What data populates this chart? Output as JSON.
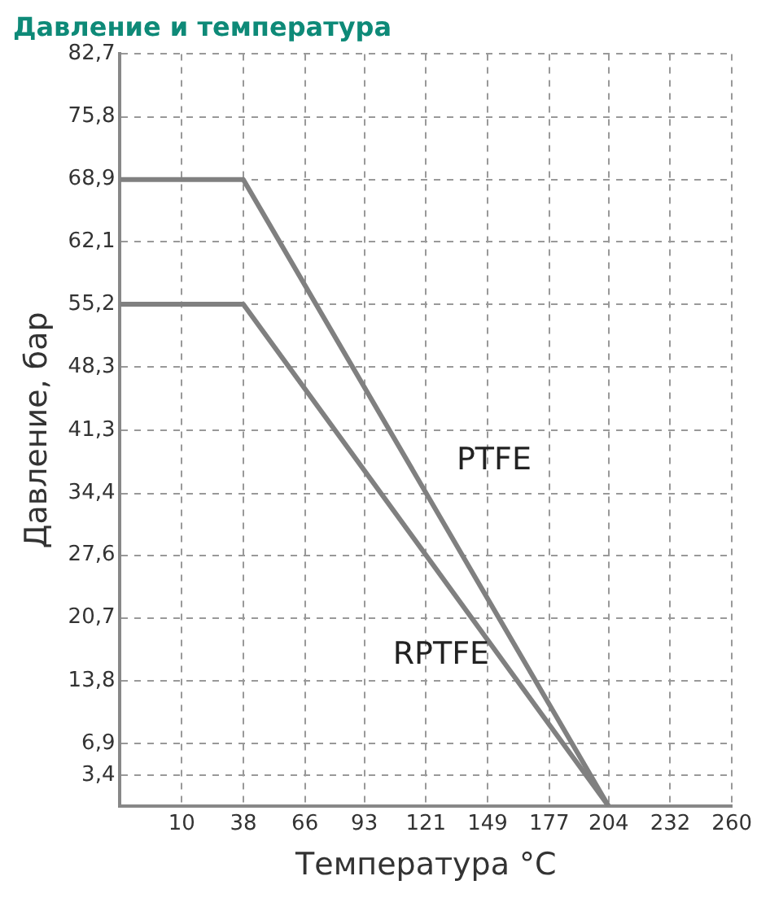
{
  "chart_data": {
    "type": "line",
    "title": "Давление и температура",
    "xlabel": "Температура °C",
    "ylabel": "Давление, бар",
    "series": [
      {
        "name": "PTFE",
        "color": "#808080",
        "x": [
          -18,
          38,
          204
        ],
        "values": [
          68.9,
          68.9,
          0
        ]
      },
      {
        "name": "RPTFE",
        "color": "#808080",
        "x": [
          -18,
          38,
          204
        ],
        "values": [
          55.2,
          55.2,
          0
        ]
      }
    ],
    "xlim": [
      -18,
      260
    ],
    "xticks": [
      10,
      38,
      66,
      93,
      121,
      149,
      177,
      204,
      232,
      260
    ],
    "ylim": [
      0,
      82.7
    ],
    "yticks": [
      {
        "value": 3.4,
        "label": "3,4"
      },
      {
        "value": 6.9,
        "label": "6,9"
      },
      {
        "value": 13.8,
        "label": "13,8"
      },
      {
        "value": 20.7,
        "label": "20,7"
      },
      {
        "value": 27.6,
        "label": "27,6"
      },
      {
        "value": 34.4,
        "label": "34,4"
      },
      {
        "value": 41.3,
        "label": "41,3"
      },
      {
        "value": 48.3,
        "label": "48,3"
      },
      {
        "value": 55.2,
        "label": "55,2"
      },
      {
        "value": 62.1,
        "label": "62,1"
      },
      {
        "value": 68.9,
        "label": "68,9"
      },
      {
        "value": 75.8,
        "label": "75,8"
      },
      {
        "value": 82.7,
        "label": "82,7"
      }
    ],
    "grid": true,
    "legend": false,
    "marker": "none",
    "line_style": "solid"
  }
}
